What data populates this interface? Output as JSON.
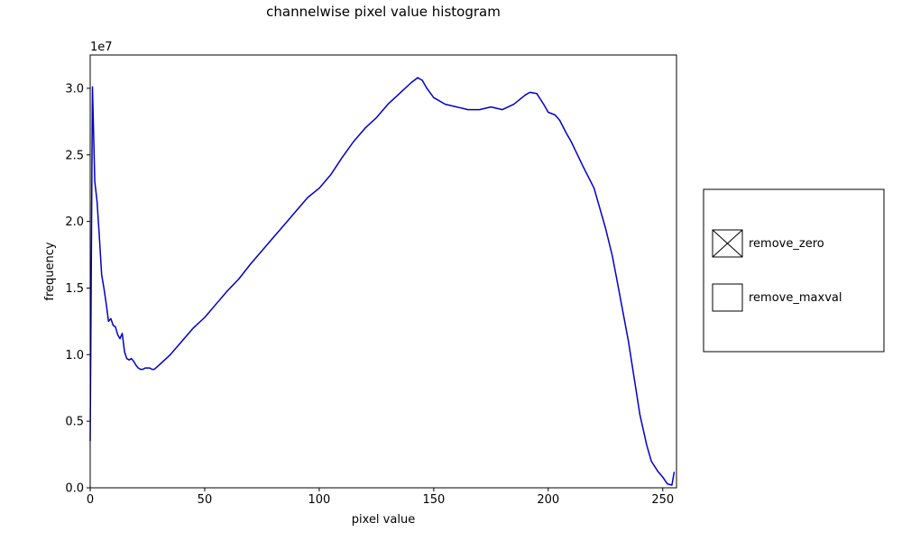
{
  "chart_data": {
    "type": "line",
    "title": "channelwise pixel value histogram",
    "xlabel": "pixel value",
    "ylabel": "frequency",
    "y_offset_label": "1e7",
    "xlim": [
      0,
      256
    ],
    "ylim": [
      0,
      3.25
    ],
    "x_ticks": [
      0,
      50,
      100,
      150,
      200,
      250
    ],
    "x_tick_labels": [
      "0",
      "50",
      "100",
      "150",
      "200",
      "250"
    ],
    "y_ticks": [
      0,
      0.5,
      1.0,
      1.5,
      2.0,
      2.5,
      3.0
    ],
    "y_tick_labels": [
      "0.0",
      "0.5",
      "1.0",
      "1.5",
      "2.0",
      "2.5",
      "3.0"
    ],
    "grid": false,
    "series": [
      {
        "color": "#0000c8",
        "x": [
          0,
          1,
          2,
          3,
          4,
          5,
          6,
          7,
          8,
          9,
          10,
          11,
          12,
          13,
          14,
          15,
          16,
          17,
          18,
          19,
          20,
          21,
          22,
          23,
          24,
          25,
          26,
          27,
          28,
          30,
          35,
          40,
          45,
          50,
          55,
          60,
          65,
          70,
          75,
          80,
          85,
          90,
          95,
          100,
          105,
          110,
          115,
          120,
          125,
          130,
          135,
          140,
          143,
          145,
          147,
          150,
          155,
          160,
          165,
          170,
          175,
          180,
          185,
          190,
          192,
          195,
          198,
          200,
          203,
          205,
          208,
          210,
          215,
          220,
          225,
          228,
          230,
          235,
          240,
          243,
          245,
          248,
          250,
          252,
          254,
          255
        ],
        "y": [
          0.35,
          3.01,
          2.3,
          2.15,
          1.88,
          1.6,
          1.5,
          1.38,
          1.25,
          1.27,
          1.22,
          1.21,
          1.15,
          1.12,
          1.16,
          1.02,
          0.97,
          0.96,
          0.97,
          0.95,
          0.92,
          0.9,
          0.89,
          0.89,
          0.9,
          0.9,
          0.9,
          0.89,
          0.89,
          0.92,
          1.0,
          1.1,
          1.2,
          1.28,
          1.38,
          1.48,
          1.57,
          1.68,
          1.78,
          1.88,
          1.98,
          2.08,
          2.18,
          2.25,
          2.35,
          2.48,
          2.6,
          2.7,
          2.78,
          2.88,
          2.96,
          3.04,
          3.08,
          3.06,
          3.0,
          2.93,
          2.88,
          2.86,
          2.84,
          2.84,
          2.86,
          2.84,
          2.88,
          2.95,
          2.97,
          2.96,
          2.88,
          2.82,
          2.8,
          2.76,
          2.66,
          2.6,
          2.42,
          2.25,
          1.95,
          1.74,
          1.56,
          1.1,
          0.55,
          0.32,
          0.2,
          0.12,
          0.08,
          0.03,
          0.02,
          0.12
        ]
      }
    ]
  },
  "checkboxes": [
    {
      "label": "remove_zero",
      "checked": true
    },
    {
      "label": "remove_maxval",
      "checked": false
    }
  ]
}
